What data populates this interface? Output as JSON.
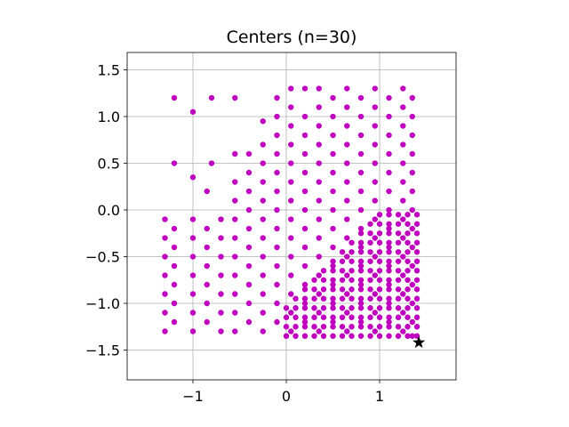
{
  "chart_data": {
    "type": "scatter",
    "title": "Centers (n=30)",
    "xlim": [
      -1.705,
      1.819
    ],
    "ylim": [
      -1.819,
      1.686
    ],
    "xticks": [
      {
        "value": -1,
        "label": "−1"
      },
      0,
      1
    ],
    "yticks": [
      {
        "value": -1.5,
        "label": "−1.5"
      },
      {
        "value": -1.0,
        "label": "−1.0"
      },
      {
        "value": -0.5,
        "label": "−0.5"
      },
      {
        "value": 0,
        "label": "0.0"
      },
      0.5,
      {
        "value": 1,
        "label": "1.0"
      },
      1.5
    ],
    "grid": true,
    "series": [
      {
        "color": "#bf00bf",
        "marker": "circle",
        "x": [
          -1.3,
          -1.3,
          -1.3,
          -1.3,
          -1.3,
          -1.3,
          -1.3,
          -1.2,
          -1.2,
          -1.2,
          -1.2,
          -1.2,
          -1.2,
          -1.2,
          -1.2,
          -1.0,
          -1.0,
          -1.0,
          -1.0,
          -1.0,
          -1.0,
          -1.0,
          -1.0,
          -1.0,
          -0.85,
          -0.85,
          -0.85,
          -0.85,
          -0.85,
          -0.85,
          -0.85,
          -0.8,
          -0.8,
          -0.7,
          -0.7,
          -0.7,
          -0.7,
          -0.7,
          -0.7,
          -0.7,
          -0.55,
          -0.55,
          -0.55,
          -0.55,
          -0.55,
          -0.55,
          -0.55,
          -0.55,
          -0.55,
          -0.55,
          -0.55,
          -0.4,
          -0.4,
          -0.4,
          -0.4,
          -0.4,
          -0.4,
          -0.4,
          -0.4,
          -0.4,
          -0.4,
          -0.25,
          -0.25,
          -0.25,
          -0.25,
          -0.25,
          -0.25,
          -0.25,
          -0.25,
          -0.25,
          -0.25,
          -0.25,
          -0.25,
          -0.1,
          -0.1,
          -0.1,
          -0.1,
          -0.1,
          -0.1,
          -0.1,
          -0.1,
          -0.1,
          -0.1,
          -0.1,
          -0.1,
          -0.1,
          0.05,
          0.05,
          0.05,
          0.05,
          0.05,
          0.05,
          0.05,
          0.05,
          0.05,
          0.05,
          0.05,
          0.05,
          0.05,
          0.05,
          0.2,
          0.2,
          0.2,
          0.2,
          0.2,
          0.2,
          0.2,
          0.2,
          0.2,
          0.2,
          0.2,
          0.2,
          0.2,
          0.35,
          0.35,
          0.35,
          0.35,
          0.35,
          0.35,
          0.35,
          0.35,
          0.35,
          0.35,
          0.35,
          0.35,
          0.35,
          0.35,
          0.5,
          0.5,
          0.5,
          0.5,
          0.5,
          0.5,
          0.5,
          0.5,
          0.5,
          0.5,
          0.5,
          0.5,
          0.5,
          0.65,
          0.65,
          0.65,
          0.65,
          0.65,
          0.65,
          0.65,
          0.65,
          0.65,
          0.65,
          0.65,
          0.65,
          0.65,
          0.65,
          0.8,
          0.8,
          0.8,
          0.8,
          0.8,
          0.8,
          0.8,
          0.8,
          0.8,
          0.8,
          0.8,
          0.8,
          0.8,
          0.95,
          0.95,
          0.95,
          0.95,
          0.95,
          0.95,
          0.95,
          0.95,
          0.95,
          0.95,
          0.95,
          0.95,
          0.95,
          0.95,
          1.1,
          1.1,
          1.1,
          1.1,
          1.1,
          1.1,
          1.1,
          1.1,
          1.1,
          1.1,
          1.1,
          1.1,
          1.1,
          1.25,
          1.25,
          1.25,
          1.25,
          1.25,
          1.25,
          1.25,
          1.25,
          1.25,
          1.25,
          1.25,
          1.25,
          1.25,
          1.25,
          1.35,
          1.35,
          1.35,
          1.35,
          1.35,
          1.35,
          1.35,
          1.35,
          1.35,
          1.35,
          1.35,
          1.35,
          1.35,
          1.35,
          0,
          0.1,
          0.2,
          0.3,
          0.4,
          0.5,
          0.6,
          0.7,
          0.8,
          0.9,
          1.0,
          1.1,
          1.2,
          1.3,
          1.4,
          0,
          0.1,
          0.2,
          0.3,
          0.4,
          0.5,
          0.6,
          0.7,
          0.8,
          0.9,
          1.0,
          1.1,
          1.2,
          1.3,
          1.4,
          0,
          0.1,
          0.2,
          0.3,
          0.4,
          0.5,
          0.6,
          0.7,
          0.8,
          0.9,
          1.0,
          1.1,
          1.2,
          1.3,
          1.4,
          0,
          0.1,
          0.2,
          0.3,
          0.4,
          0.5,
          0.6,
          0.7,
          0.8,
          0.9,
          1.0,
          1.1,
          1.2,
          1.3,
          1.4,
          0.1,
          0.2,
          0.3,
          0.4,
          0.5,
          0.6,
          0.7,
          0.8,
          0.9,
          1.0,
          1.1,
          1.2,
          1.3,
          1.4,
          0.2,
          0.3,
          0.4,
          0.5,
          0.6,
          0.7,
          0.8,
          0.9,
          1.0,
          1.1,
          1.2,
          1.3,
          1.4,
          0.3,
          0.4,
          0.5,
          0.6,
          0.7,
          0.8,
          0.9,
          1.0,
          1.1,
          1.2,
          1.3,
          1.4,
          0.4,
          0.5,
          0.6,
          0.7,
          0.8,
          0.9,
          1.0,
          1.1,
          1.2,
          1.3,
          1.4,
          0.5,
          0.6,
          0.7,
          0.8,
          0.9,
          1.0,
          1.1,
          1.2,
          1.3,
          1.4,
          0.6,
          0.7,
          0.8,
          0.9,
          1.0,
          1.1,
          1.2,
          1.3,
          1.4,
          0.7,
          0.8,
          0.9,
          1.0,
          1.1,
          1.2,
          1.3,
          1.4,
          0.8,
          0.9,
          1.0,
          1.1,
          1.2,
          1.3,
          1.4,
          0.9,
          1.0,
          1.1,
          1.2,
          1.3,
          1.4,
          1.0,
          1.1,
          1.2,
          1.3,
          1.4
        ],
        "values": [
          -1.3,
          -1.1,
          -0.9,
          -0.7,
          -0.5,
          -0.3,
          -0.1,
          -1.2,
          -1.0,
          -0.8,
          -0.6,
          -0.4,
          -0.2,
          0.5,
          1.2,
          -1.3,
          -1.1,
          -0.9,
          -0.7,
          -0.5,
          -0.3,
          -0.1,
          0.35,
          1.05,
          -1.2,
          -1.0,
          -0.8,
          -0.6,
          -0.4,
          -0.2,
          0.2,
          0.5,
          1.2,
          -1.3,
          -1.1,
          -0.9,
          -0.7,
          -0.5,
          -0.3,
          -0.1,
          -1.3,
          -1.1,
          -0.9,
          -0.7,
          -0.5,
          -0.3,
          -0.1,
          0.1,
          0.3,
          0.6,
          1.2,
          -1.2,
          -1.0,
          -0.8,
          -0.6,
          -0.4,
          -0.2,
          0,
          0.2,
          0.4,
          0.6,
          -1.3,
          -1.1,
          -0.9,
          -0.7,
          -0.5,
          -0.3,
          -0.1,
          0.1,
          0.3,
          0.5,
          0.7,
          0.95,
          -1.2,
          -1.0,
          -0.8,
          -0.6,
          -0.4,
          -0.2,
          0,
          0.2,
          0.4,
          0.6,
          0.8,
          1.0,
          1.2,
          -1.3,
          -1.1,
          -0.9,
          -0.7,
          -0.5,
          -0.3,
          -0.1,
          0.1,
          0.3,
          0.5,
          0.7,
          0.9,
          1.1,
          1.3,
          -1.2,
          -1.0,
          -0.8,
          -0.6,
          -0.4,
          -0.2,
          0,
          0.2,
          0.4,
          0.6,
          0.8,
          1.0,
          1.3,
          -1.3,
          -1.1,
          -0.9,
          -0.7,
          -0.5,
          -0.3,
          -0.1,
          0.1,
          0.3,
          0.5,
          0.7,
          0.9,
          1.1,
          1.3,
          -1.2,
          -1.0,
          -0.8,
          -0.6,
          -0.4,
          -0.2,
          0,
          0.2,
          0.4,
          0.6,
          0.8,
          1.0,
          1.2,
          -1.3,
          -1.1,
          -0.9,
          -0.7,
          -0.5,
          -0.3,
          -0.1,
          0.1,
          0.3,
          0.5,
          0.7,
          0.9,
          1.1,
          1.3,
          -1.2,
          -1.0,
          -0.8,
          -0.6,
          -0.4,
          -0.2,
          0,
          0.2,
          0.4,
          0.6,
          0.8,
          1.0,
          1.2,
          -1.3,
          -1.1,
          -0.9,
          -0.7,
          -0.5,
          -0.3,
          -0.1,
          0.1,
          0.3,
          0.5,
          0.7,
          0.9,
          1.1,
          1.3,
          -1.2,
          -1.0,
          -0.8,
          -0.6,
          -0.4,
          -0.2,
          0,
          0.2,
          0.4,
          0.6,
          0.8,
          1.0,
          1.2,
          -1.3,
          -1.1,
          -0.9,
          -0.7,
          -0.5,
          -0.3,
          -0.1,
          0.1,
          0.3,
          0.5,
          0.7,
          0.9,
          1.1,
          1.3,
          -1.35,
          -1.2,
          -1.0,
          -0.8,
          -0.6,
          -0.4,
          -0.2,
          0,
          0.2,
          0.4,
          0.6,
          0.8,
          1.0,
          1.2,
          -1.35,
          -1.35,
          -1.35,
          -1.35,
          -1.35,
          -1.35,
          -1.35,
          -1.35,
          -1.35,
          -1.35,
          -1.35,
          -1.35,
          -1.35,
          -1.35,
          -1.35,
          -1.25,
          -1.25,
          -1.25,
          -1.25,
          -1.25,
          -1.25,
          -1.25,
          -1.25,
          -1.25,
          -1.25,
          -1.25,
          -1.25,
          -1.25,
          -1.25,
          -1.25,
          -1.15,
          -1.15,
          -1.15,
          -1.15,
          -1.15,
          -1.15,
          -1.15,
          -1.15,
          -1.15,
          -1.15,
          -1.15,
          -1.15,
          -1.15,
          -1.15,
          -1.15,
          -1.05,
          -1.05,
          -1.05,
          -1.05,
          -1.05,
          -1.05,
          -1.05,
          -1.05,
          -1.05,
          -1.05,
          -1.05,
          -1.05,
          -1.05,
          -1.05,
          -1.05,
          -0.95,
          -0.95,
          -0.95,
          -0.95,
          -0.95,
          -0.95,
          -0.95,
          -0.95,
          -0.95,
          -0.95,
          -0.95,
          -0.95,
          -0.95,
          -0.95,
          -0.85,
          -0.85,
          -0.85,
          -0.85,
          -0.85,
          -0.85,
          -0.85,
          -0.85,
          -0.85,
          -0.85,
          -0.85,
          -0.85,
          -0.85,
          -0.75,
          -0.75,
          -0.75,
          -0.75,
          -0.75,
          -0.75,
          -0.75,
          -0.75,
          -0.75,
          -0.75,
          -0.75,
          -0.75,
          -0.65,
          -0.65,
          -0.65,
          -0.65,
          -0.65,
          -0.65,
          -0.65,
          -0.65,
          -0.65,
          -0.65,
          -0.65,
          -0.55,
          -0.55,
          -0.55,
          -0.55,
          -0.55,
          -0.55,
          -0.55,
          -0.55,
          -0.55,
          -0.55,
          -0.45,
          -0.45,
          -0.45,
          -0.45,
          -0.45,
          -0.45,
          -0.45,
          -0.45,
          -0.45,
          -0.35,
          -0.35,
          -0.35,
          -0.35,
          -0.35,
          -0.35,
          -0.35,
          -0.35,
          -0.25,
          -0.25,
          -0.25,
          -0.25,
          -0.25,
          -0.25,
          -0.25,
          -0.15,
          -0.15,
          -0.15,
          -0.15,
          -0.15,
          -0.15,
          -0.05,
          -0.05,
          -0.05,
          -0.05,
          -0.05
        ]
      },
      {
        "color": "#000000",
        "marker": "star",
        "x": [
          1.42
        ],
        "values": [
          -1.42
        ]
      }
    ]
  }
}
